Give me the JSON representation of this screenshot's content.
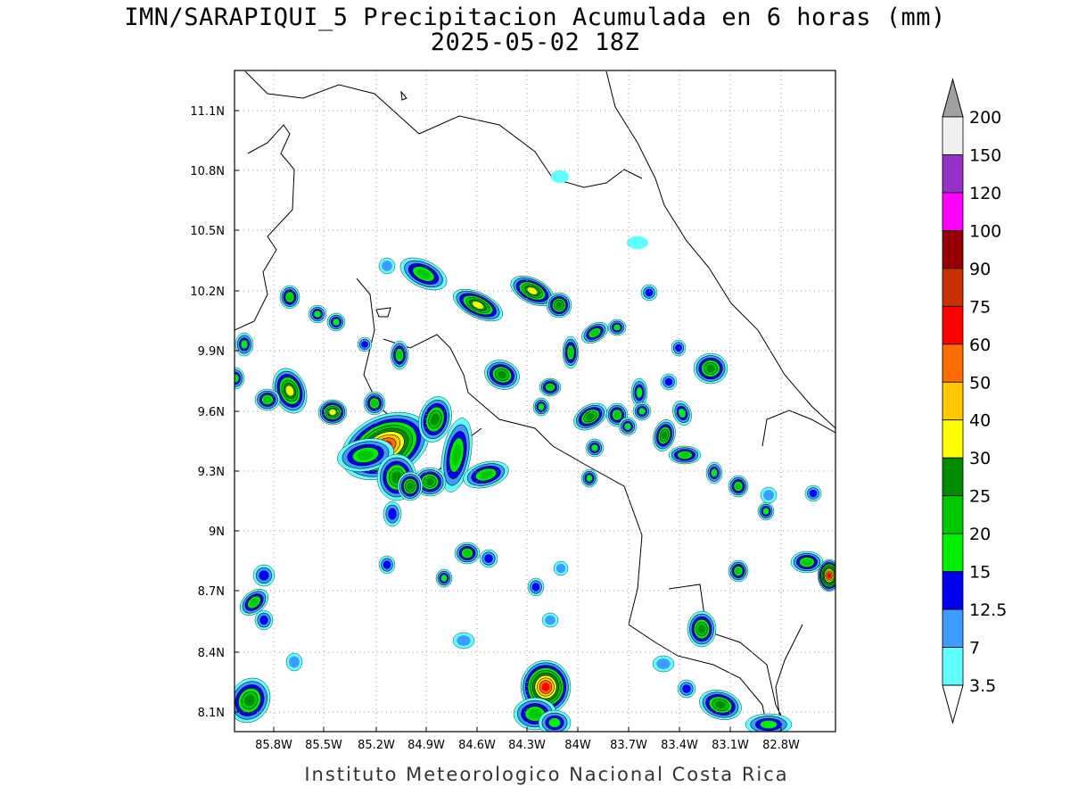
{
  "title": {
    "line1": "IMN/SARAPIQUI_5 Precipitacion Acumulada en 6 horas (mm)",
    "line2": "2025-05-02 18Z"
  },
  "footer": "Instituto Meteorologico Nacional Costa Rica",
  "map": {
    "lat_ticks": [
      "11.1N",
      "10.8N",
      "10.5N",
      "10.2N",
      "9.9N",
      "9.6N",
      "9.3N",
      "9N",
      "8.7N",
      "8.4N",
      "8.1N"
    ],
    "lon_ticks": [
      "85.8W",
      "85.5W",
      "85.2W",
      "84.9W",
      "84.6W",
      "84.3W",
      "84W",
      "83.7W",
      "83.4W",
      "83.1W",
      "82.8W"
    ],
    "grid": "dotted"
  },
  "colorbar": {
    "labels": [
      "3.5",
      "7",
      "12.5",
      "15",
      "20",
      "25",
      "30",
      "40",
      "50",
      "60",
      "75",
      "90",
      "100",
      "120",
      "150",
      "200"
    ],
    "colors": [
      "#ffffff",
      "#60ffff",
      "#3c9cff",
      "#0000f0",
      "#00ee00",
      "#00c800",
      "#008c00",
      "#ffff00",
      "#ffc800",
      "#ff6c00",
      "#ff0000",
      "#c83200",
      "#960000",
      "#ff00ff",
      "#9632c8",
      "#f0f0f0",
      "#a0a0a0"
    ]
  }
}
